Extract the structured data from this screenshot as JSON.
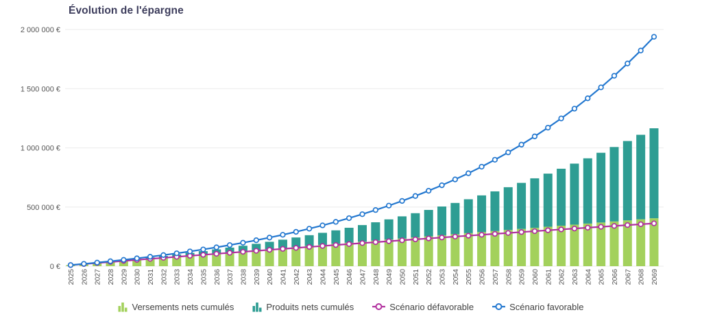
{
  "header": {
    "title": "Évolution de l'épargne"
  },
  "theme": {
    "title_color": "#3d3d5c",
    "axis_text_color": "#555555",
    "grid_color": "#efefef",
    "background": "#ffffff"
  },
  "chart_data": {
    "type": "bar",
    "subtype": "stacked-bars-with-lines",
    "title": "Évolution de l'épargne",
    "xlabel": "",
    "ylabel": "",
    "grid": "horizontal",
    "legend_position": "bottom",
    "x": [
      2025,
      2026,
      2027,
      2028,
      2029,
      2030,
      2031,
      2032,
      2033,
      2034,
      2035,
      2036,
      2037,
      2038,
      2039,
      2040,
      2041,
      2042,
      2043,
      2044,
      2045,
      2046,
      2047,
      2048,
      2049,
      2050,
      2051,
      2052,
      2053,
      2054,
      2055,
      2056,
      2057,
      2058,
      2059,
      2060,
      2061,
      2062,
      2063,
      2064,
      2065,
      2066,
      2067,
      2068,
      2069
    ],
    "y_axis": {
      "max": 2000000,
      "ticks": [
        0,
        500000,
        1000000,
        1500000,
        2000000
      ],
      "tick_labels": [
        "0 €",
        "500 000 €",
        "1 000 000 €",
        "1 500 000 €",
        "2 000 000 €"
      ]
    },
    "series": [
      {
        "name": "Versements nets cumulés",
        "type": "bar",
        "stack": "epargne",
        "color": "#a3d15c",
        "values": [
          9000,
          18000,
          27000,
          36000,
          45000,
          54000,
          63000,
          72000,
          81000,
          90000,
          99000,
          108000,
          117000,
          126000,
          135000,
          144000,
          153000,
          162000,
          171000,
          180000,
          189000,
          198000,
          207000,
          216000,
          225000,
          234000,
          243000,
          252000,
          261000,
          270000,
          279000,
          288000,
          297000,
          306000,
          315000,
          324000,
          333000,
          342000,
          351000,
          360000,
          369000,
          378000,
          387000,
          396000,
          405000
        ]
      },
      {
        "name": "Produits nets cumulés",
        "type": "bar",
        "stack": "epargne",
        "color": "#2e9d93",
        "values": [
          400,
          1100,
          2300,
          3800,
          5800,
          8300,
          11200,
          14600,
          18500,
          23000,
          28000,
          33600,
          39800,
          46500,
          54000,
          62100,
          70900,
          80500,
          90800,
          101900,
          113800,
          126600,
          140300,
          154900,
          170500,
          187000,
          204700,
          223400,
          243300,
          264300,
          286600,
          310100,
          335000,
          361300,
          389000,
          418300,
          449100,
          481500,
          515600,
          551500,
          589300,
          628900,
          670600,
          714300,
          760200
        ]
      },
      {
        "name": "Scénario défavorable",
        "type": "line",
        "marker": "circle-open",
        "color": "#b12f9e",
        "values": [
          9000,
          17900,
          26700,
          35600,
          44300,
          53100,
          61800,
          70400,
          79000,
          87600,
          96100,
          104600,
          113000,
          121400,
          129700,
          138000,
          146300,
          154500,
          162700,
          170800,
          178900,
          187000,
          195000,
          203000,
          210900,
          218800,
          226700,
          234500,
          242300,
          250000,
          257700,
          265400,
          273000,
          280600,
          288200,
          295700,
          303200,
          310600,
          318000,
          325400,
          332700,
          340000,
          347200,
          354500,
          361600
        ]
      },
      {
        "name": "Scénario favorable",
        "type": "line",
        "marker": "circle-open",
        "color": "#2277cf",
        "values": [
          9500,
          19600,
          30300,
          41600,
          53500,
          66200,
          79600,
          93800,
          108800,
          124700,
          141500,
          159300,
          178200,
          198100,
          219200,
          241600,
          265200,
          290300,
          316800,
          344800,
          374500,
          406000,
          439200,
          474500,
          511700,
          551200,
          593000,
          637200,
          683800,
          733100,
          785100,
          840600,
          899300,
          961400,
          1027200,
          1096800,
          1170500,
          1248500,
          1331100,
          1418500,
          1511000,
          1608900,
          1712600,
          1822300,
          1938400
        ]
      }
    ]
  }
}
